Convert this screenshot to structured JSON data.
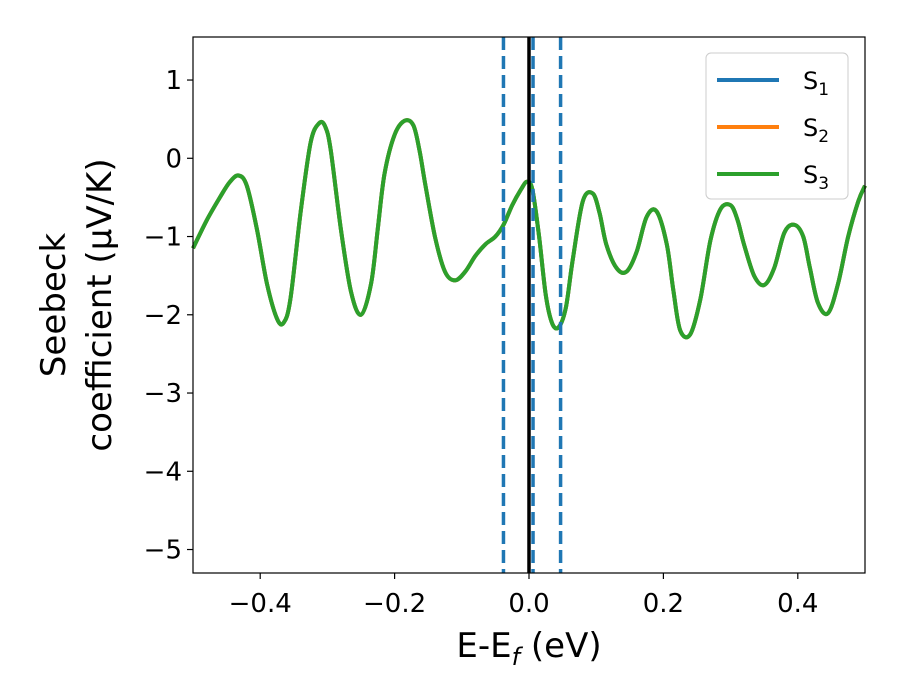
{
  "chart_data": {
    "type": "line",
    "xlabel": "E-E",
    "xlabel_sub": "f",
    "xlabel_unit": " (eV)",
    "ylabel_line1": "Seebeck",
    "ylabel_line2": "coefficient  (μV/K)",
    "xlim": [
      -0.5,
      0.5
    ],
    "ylim": [
      -5.3,
      1.55
    ],
    "x_ticks": [
      -0.4,
      -0.2,
      0.0,
      0.2,
      0.4
    ],
    "x_tick_labels": [
      "−0.4",
      "−0.2",
      "0.0",
      "0.2",
      "0.4"
    ],
    "y_ticks": [
      1,
      0,
      -1,
      -2,
      -3,
      -4,
      -5
    ],
    "y_tick_labels": [
      "1",
      "0",
      "−1",
      "−2",
      "−3",
      "−4",
      "−5"
    ],
    "legend_position": "top-right",
    "vertical_lines": [
      {
        "x": -0.038,
        "style": "dashed",
        "color": "#1f77b4"
      },
      {
        "x": 0.0,
        "style": "solid",
        "color": "#000000"
      },
      {
        "x": 0.006,
        "style": "dashed",
        "color": "#1f77b4"
      },
      {
        "x": 0.047,
        "style": "dashed",
        "color": "#1f77b4"
      }
    ],
    "series": [
      {
        "name": "S",
        "sub": "1",
        "color": "#1f77b4"
      },
      {
        "name": "S",
        "sub": "2",
        "color": "#ff7f0e"
      },
      {
        "name": "S",
        "sub": "3",
        "color": "#2ca02c"
      }
    ],
    "curve": {
      "x": [
        -0.5,
        -0.48,
        -0.46,
        -0.445,
        -0.432,
        -0.42,
        -0.405,
        -0.39,
        -0.375,
        -0.365,
        -0.355,
        -0.34,
        -0.325,
        -0.312,
        -0.303,
        -0.295,
        -0.28,
        -0.265,
        -0.25,
        -0.235,
        -0.225,
        -0.215,
        -0.2,
        -0.185,
        -0.172,
        -0.163,
        -0.155,
        -0.14,
        -0.125,
        -0.11,
        -0.095,
        -0.08,
        -0.065,
        -0.05,
        -0.038,
        -0.025,
        -0.012,
        -0.003,
        0.005,
        0.015,
        0.025,
        0.035,
        0.045,
        0.055,
        0.065,
        0.08,
        0.095,
        0.105,
        0.115,
        0.13,
        0.145,
        0.16,
        0.175,
        0.19,
        0.205,
        0.215,
        0.225,
        0.24,
        0.255,
        0.27,
        0.285,
        0.3,
        0.31,
        0.32,
        0.335,
        0.35,
        0.365,
        0.38,
        0.395,
        0.408,
        0.418,
        0.43,
        0.445,
        0.46,
        0.475,
        0.49,
        0.5
      ],
      "y": [
        -1.15,
        -0.8,
        -0.5,
        -0.3,
        -0.22,
        -0.35,
        -0.9,
        -1.6,
        -2.05,
        -2.1,
        -1.8,
        -0.7,
        0.2,
        0.45,
        0.4,
        0.1,
        -0.9,
        -1.7,
        -2.0,
        -1.6,
        -0.9,
        -0.2,
        0.3,
        0.48,
        0.42,
        0.1,
        -0.3,
        -1.0,
        -1.45,
        -1.56,
        -1.45,
        -1.25,
        -1.1,
        -1.0,
        -0.85,
        -0.6,
        -0.4,
        -0.3,
        -0.4,
        -1.0,
        -1.75,
        -2.12,
        -2.15,
        -1.9,
        -1.3,
        -0.55,
        -0.45,
        -0.7,
        -1.1,
        -1.4,
        -1.45,
        -1.2,
        -0.75,
        -0.68,
        -1.1,
        -1.7,
        -2.2,
        -2.25,
        -1.8,
        -1.05,
        -0.65,
        -0.6,
        -0.78,
        -1.1,
        -1.5,
        -1.62,
        -1.4,
        -0.95,
        -0.85,
        -1.0,
        -1.4,
        -1.85,
        -1.98,
        -1.6,
        -1.0,
        -0.55,
        -0.35
      ]
    }
  }
}
